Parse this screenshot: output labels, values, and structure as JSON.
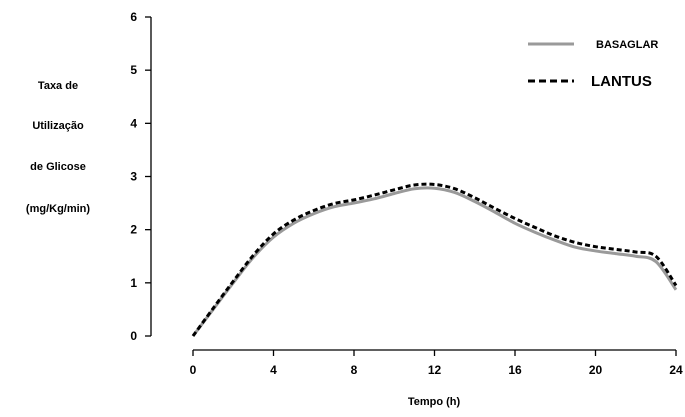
{
  "chart_data": {
    "type": "line",
    "title": "",
    "xlabel": "Tempo (h)",
    "ylabel_lines": [
      "Taxa de",
      "Utilização",
      "de Glicose",
      "(mg/Kg/min)"
    ],
    "xlim": [
      0,
      24
    ],
    "ylim": [
      0,
      6
    ],
    "x_ticks": [
      "0",
      "4",
      "8",
      "12",
      "16",
      "20",
      "24"
    ],
    "y_ticks": [
      "0",
      "1",
      "2",
      "3",
      "4",
      "5",
      "6"
    ],
    "grid": false,
    "legend_position": "top-right",
    "series": [
      {
        "name": "BASAGLAR",
        "color": "#9a9a9a",
        "style": "solid",
        "x": [
          0,
          1,
          2,
          3,
          4,
          5,
          6,
          7,
          8,
          9,
          10,
          11,
          12,
          13,
          14,
          15,
          16,
          17,
          18,
          19,
          20,
          21,
          22,
          23,
          24
        ],
        "y": [
          0.0,
          0.5,
          1.0,
          1.48,
          1.86,
          2.12,
          2.3,
          2.43,
          2.5,
          2.58,
          2.68,
          2.77,
          2.78,
          2.7,
          2.53,
          2.33,
          2.12,
          1.95,
          1.8,
          1.67,
          1.6,
          1.55,
          1.5,
          1.4,
          0.87
        ]
      },
      {
        "name": "LANTUS",
        "color": "#000000",
        "style": "dashed",
        "x": [
          0,
          1,
          2,
          3,
          4,
          5,
          6,
          7,
          8,
          9,
          10,
          11,
          12,
          13,
          14,
          15,
          16,
          17,
          18,
          19,
          20,
          21,
          22,
          23,
          24
        ],
        "y": [
          0.0,
          0.52,
          1.03,
          1.52,
          1.92,
          2.18,
          2.36,
          2.49,
          2.56,
          2.65,
          2.75,
          2.84,
          2.85,
          2.77,
          2.6,
          2.4,
          2.21,
          2.04,
          1.88,
          1.76,
          1.68,
          1.63,
          1.58,
          1.5,
          0.95
        ]
      }
    ]
  }
}
